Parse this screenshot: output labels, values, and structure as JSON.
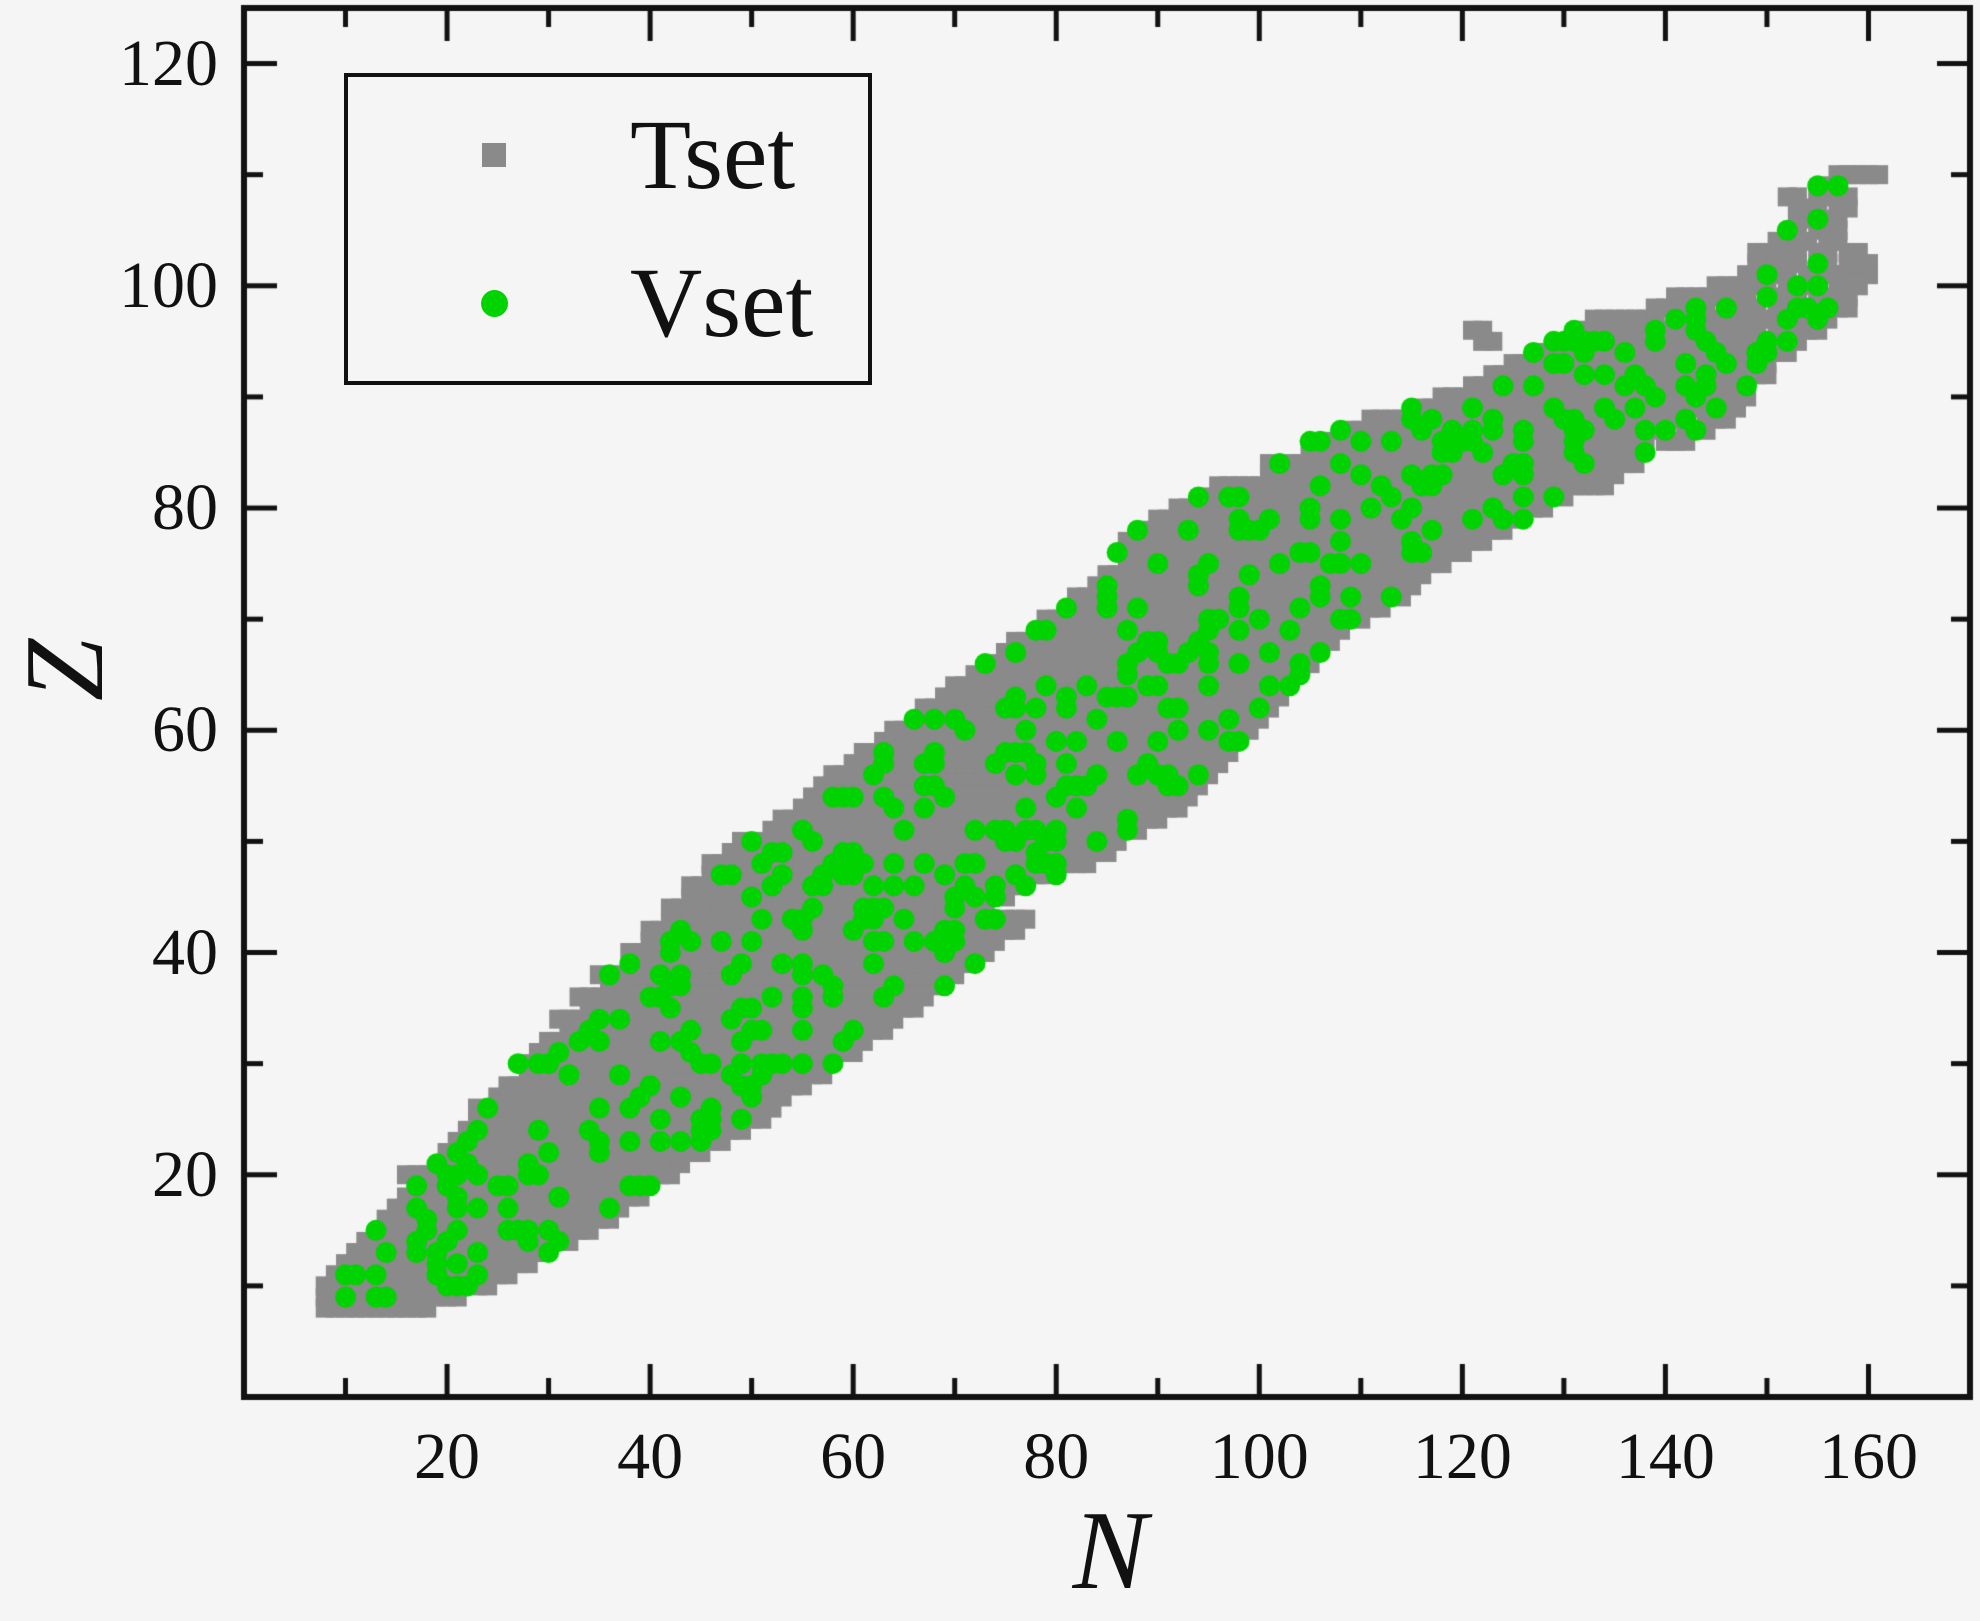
{
  "figure": {
    "background": "#f5f5f5",
    "frame_color": "#111111",
    "text_color": "#111111"
  },
  "chart_data": {
    "type": "scatter",
    "title": "",
    "xlabel": "N",
    "ylabel": "Z",
    "xlim": [
      0,
      170
    ],
    "ylim": [
      0,
      125
    ],
    "xticks": [
      20,
      40,
      60,
      80,
      100,
      120,
      140,
      160
    ],
    "xminorticks": [
      10,
      30,
      50,
      70,
      90,
      110,
      130,
      150
    ],
    "yticks": [
      20,
      40,
      60,
      80,
      100,
      120
    ],
    "yminorticks": [
      10,
      30,
      50,
      70,
      90,
      110
    ],
    "grid": false,
    "legend": {
      "position": "top-left",
      "entries": [
        {
          "label": "Tset",
          "marker": "square",
          "color": "#8a8a8a"
        },
        {
          "label": "Vset",
          "marker": "circle",
          "color": "#00d300"
        }
      ]
    },
    "series_note": "Nuclear chart: each nuclide (N,Z) plotted; Tset = gray squares, Vset = green circles scattered among them",
    "z_rows": [
      [
        8,
        8,
        18
      ],
      [
        9,
        8,
        21
      ],
      [
        10,
        8,
        24
      ],
      [
        11,
        9,
        26
      ],
      [
        12,
        10,
        28
      ],
      [
        13,
        11,
        30
      ],
      [
        14,
        12,
        32
      ],
      [
        15,
        13,
        34
      ],
      [
        16,
        14,
        36
      ],
      [
        17,
        15,
        37
      ],
      [
        18,
        16,
        39
      ],
      [
        19,
        17,
        40
      ],
      [
        20,
        16,
        42
      ],
      [
        21,
        19,
        43
      ],
      [
        22,
        20,
        45
      ],
      [
        23,
        21,
        47
      ],
      [
        24,
        22,
        49
      ],
      [
        25,
        23,
        51
      ],
      [
        26,
        23,
        52
      ],
      [
        27,
        25,
        53
      ],
      [
        28,
        26,
        55
      ],
      [
        29,
        28,
        57
      ],
      [
        30,
        27,
        58
      ],
      [
        31,
        29,
        60
      ],
      [
        32,
        30,
        61
      ],
      [
        33,
        32,
        63
      ],
      [
        34,
        31,
        64
      ],
      [
        35,
        34,
        66
      ],
      [
        36,
        33,
        67
      ],
      [
        37,
        36,
        69
      ],
      [
        38,
        35,
        70
      ],
      [
        39,
        38,
        72
      ],
      [
        40,
        38,
        73
      ],
      [
        41,
        40,
        74
      ],
      [
        42,
        40,
        76
      ],
      [
        43,
        42,
        77
      ],
      [
        44,
        42,
        73
      ],
      [
        45,
        44,
        75
      ],
      [
        46,
        44,
        77
      ],
      [
        47,
        46,
        80
      ],
      [
        48,
        46,
        83
      ],
      [
        49,
        48,
        85
      ],
      [
        50,
        49,
        86
      ],
      [
        51,
        52,
        88
      ],
      [
        52,
        53,
        90
      ],
      [
        53,
        55,
        92
      ],
      [
        54,
        56,
        93
      ],
      [
        55,
        57,
        94
      ],
      [
        56,
        58,
        95
      ],
      [
        57,
        60,
        96
      ],
      [
        58,
        61,
        97
      ],
      [
        59,
        63,
        98
      ],
      [
        60,
        64,
        99
      ],
      [
        61,
        66,
        100
      ],
      [
        62,
        67,
        101
      ],
      [
        63,
        69,
        102
      ],
      [
        64,
        70,
        103
      ],
      [
        65,
        72,
        104
      ],
      [
        66,
        73,
        105
      ],
      [
        67,
        75,
        106
      ],
      [
        68,
        76,
        107
      ],
      [
        69,
        78,
        108
      ],
      [
        70,
        79,
        110
      ],
      [
        71,
        81,
        112
      ],
      [
        72,
        82,
        114
      ],
      [
        73,
        84,
        115
      ],
      [
        74,
        85,
        116
      ],
      [
        75,
        87,
        118
      ],
      [
        76,
        86,
        120
      ],
      [
        77,
        87,
        122
      ],
      [
        78,
        88,
        124
      ],
      [
        79,
        90,
        126
      ],
      [
        80,
        92,
        128
      ],
      [
        81,
        94,
        130
      ],
      [
        82,
        96,
        134
      ],
      [
        83,
        101,
        135
      ],
      [
        84,
        101,
        137
      ],
      [
        85,
        105,
        138
      ],
      [
        86,
        105,
        142
      ],
      [
        87,
        108,
        144
      ],
      [
        88,
        111,
        146
      ],
      [
        89,
        115,
        147
      ],
      [
        90,
        118,
        148
      ],
      [
        91,
        121,
        148
      ],
      [
        92,
        123,
        150
      ],
      [
        93,
        125,
        150
      ],
      [
        94,
        127,
        152
      ],
      [
        95,
        129,
        153
      ],
      [
        96,
        131,
        155
      ],
      [
        97,
        134,
        156
      ],
      [
        98,
        139,
        158
      ],
      [
        99,
        141,
        158
      ],
      [
        100,
        145,
        159
      ],
      [
        101,
        148,
        160
      ],
      [
        102,
        149,
        160
      ],
      [
        103,
        149,
        159
      ],
      [
        104,
        151,
        157
      ],
      [
        105,
        152,
        157
      ],
      [
        106,
        153,
        157
      ],
      [
        107,
        153,
        158
      ],
      [
        108,
        152,
        158
      ],
      [
        109,
        155,
        157
      ],
      [
        110,
        157,
        161
      ]
    ],
    "extra_points": [
      [
        95,
        [
          122,
          123
        ]
      ],
      [
        96,
        [
          121,
          122
        ]
      ],
      [
        97,
        [
          133
        ]
      ]
    ],
    "holes": [
      [
        86,
        139
      ],
      [
        87,
        141
      ],
      [
        88,
        143
      ],
      [
        96,
        150
      ],
      [
        97,
        140
      ],
      [
        98,
        145
      ],
      [
        98,
        150
      ],
      [
        99,
        149
      ],
      [
        99,
        154
      ],
      [
        100,
        151
      ],
      [
        100,
        156
      ],
      [
        101,
        153
      ],
      [
        102,
        154
      ],
      [
        102,
        157
      ],
      [
        103,
        154
      ],
      [
        103,
        157
      ],
      [
        104,
        155
      ],
      [
        105,
        154
      ],
      [
        107,
        156
      ],
      [
        108,
        154
      ]
    ],
    "vset_selection": {
      "fraction": 0.17,
      "seed": 20230817
    }
  },
  "markers": {
    "tset_color": "#8a8a8a",
    "vset_color": "#00d300",
    "tset_shape": "square",
    "vset_shape": "circle"
  }
}
